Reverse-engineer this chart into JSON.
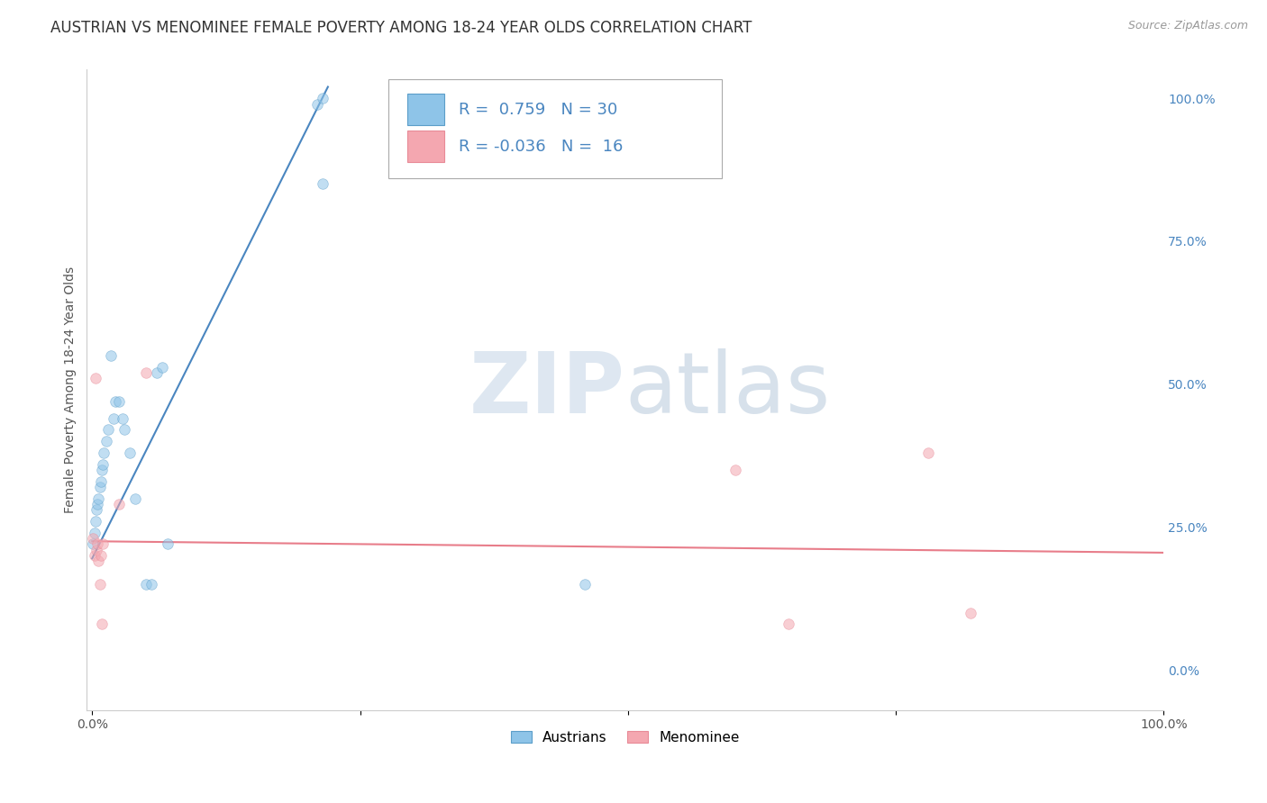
{
  "title": "AUSTRIAN VS MENOMINEE FEMALE POVERTY AMONG 18-24 YEAR OLDS CORRELATION CHART",
  "source": "Source: ZipAtlas.com",
  "ylabel": "Female Poverty Among 18-24 Year Olds",
  "legend_blue_R": "0.759",
  "legend_blue_N": "30",
  "legend_pink_R": "-0.036",
  "legend_pink_N": "16",
  "blue_scatter_x": [
    0.001,
    0.002,
    0.003,
    0.004,
    0.005,
    0.006,
    0.007,
    0.008,
    0.009,
    0.01,
    0.011,
    0.013,
    0.015,
    0.017,
    0.02,
    0.022,
    0.025,
    0.028,
    0.03,
    0.035,
    0.04,
    0.05,
    0.055,
    0.06,
    0.065,
    0.07,
    0.21,
    0.215,
    0.215,
    0.46
  ],
  "blue_scatter_y": [
    0.22,
    0.24,
    0.26,
    0.28,
    0.29,
    0.3,
    0.32,
    0.33,
    0.35,
    0.36,
    0.38,
    0.4,
    0.42,
    0.55,
    0.44,
    0.47,
    0.47,
    0.44,
    0.42,
    0.38,
    0.3,
    0.15,
    0.15,
    0.52,
    0.53,
    0.22,
    0.99,
    1.0,
    0.85,
    0.15
  ],
  "pink_scatter_x": [
    0.001,
    0.002,
    0.003,
    0.004,
    0.005,
    0.006,
    0.007,
    0.008,
    0.009,
    0.01,
    0.025,
    0.05,
    0.6,
    0.65,
    0.78,
    0.82
  ],
  "pink_scatter_y": [
    0.23,
    0.2,
    0.51,
    0.21,
    0.22,
    0.19,
    0.15,
    0.2,
    0.08,
    0.22,
    0.29,
    0.52,
    0.35,
    0.08,
    0.38,
    0.1
  ],
  "blue_line_x0": 0.0,
  "blue_line_y0": 0.195,
  "blue_line_x1": 0.22,
  "blue_line_y1": 1.02,
  "pink_line_x0": 0.0,
  "pink_line_y0": 0.225,
  "pink_line_x1": 1.0,
  "pink_line_y1": 0.205,
  "xlim": [
    -0.005,
    1.0
  ],
  "ylim": [
    -0.07,
    1.05
  ],
  "xtick_positions": [
    0.0,
    0.25,
    0.5,
    0.75,
    1.0
  ],
  "xtick_labels": [
    "0.0%",
    "",
    "",
    "",
    "100.0%"
  ],
  "ytick_positions": [
    0.0,
    0.25,
    0.5,
    0.75,
    1.0
  ],
  "ytick_labels_right": [
    "0.0%",
    "25.0%",
    "50.0%",
    "75.0%",
    "100.0%"
  ],
  "blue_color": "#8ec4e8",
  "pink_color": "#f4a7b0",
  "blue_edge_color": "#5b9ec9",
  "pink_edge_color": "#e88a97",
  "blue_line_color": "#4a86c0",
  "pink_line_color": "#e87d8a",
  "right_tick_color": "#4a86c0",
  "background_color": "#ffffff",
  "grid_color": "#d0d0d0",
  "title_fontsize": 12,
  "label_fontsize": 10,
  "tick_fontsize": 10,
  "scatter_size": 70,
  "scatter_alpha": 0.55,
  "scatter_linewidth": 0.5
}
